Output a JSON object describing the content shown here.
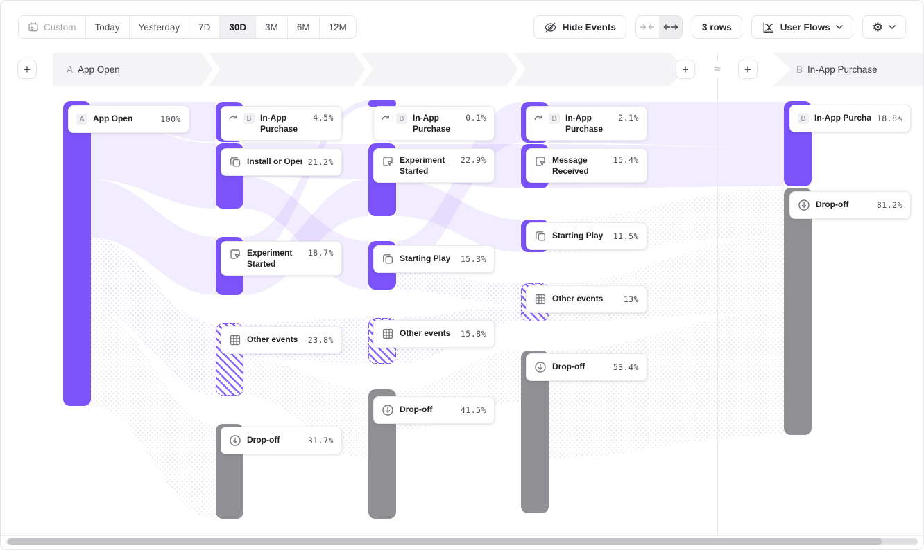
{
  "toolbar": {
    "date_ranges": [
      {
        "label": "Custom",
        "icon": "calendar-icon",
        "muted": true
      },
      {
        "label": "Today"
      },
      {
        "label": "Yesterday"
      },
      {
        "label": "7D"
      },
      {
        "label": "30D",
        "active": true
      },
      {
        "label": "3M"
      },
      {
        "label": "6M"
      },
      {
        "label": "12M"
      }
    ],
    "hide_events_label": "Hide Events",
    "rows_label": "3 rows",
    "view_label": "User Flows",
    "icons": [
      "eye-off-icon",
      "arrows-inward-icon",
      "arrows-outward-icon",
      "flow-chart-icon",
      "gear-icon",
      "chevron-down-icon"
    ]
  },
  "steps": {
    "add_label": "+",
    "approx_symbol": "≈",
    "start": {
      "badge": "A",
      "label": "App Open"
    },
    "end": {
      "badge": "B",
      "label": "In-App Purchase"
    }
  },
  "colors": {
    "accent_purple": "#7c52fa",
    "dropoff_gray": "#909094",
    "band_gray": "#f4f4f6",
    "flow_tint": "#7c52fa"
  },
  "chart_data": {
    "type": "sankey",
    "title": "User Flows from A App Open to B In-App Purchase",
    "unit": "percent of users",
    "columns": [
      {
        "nodes": [
          {
            "label": "App Open",
            "badge": "A",
            "value": "100%",
            "kind": "start"
          }
        ]
      },
      {
        "nodes": [
          {
            "label": "In-App Purchase",
            "badge": "B",
            "icon": "jump-icon",
            "value": "4.5%",
            "kind": "purchase"
          },
          {
            "label": "Install or Open",
            "icon": "copy-icon",
            "value": "21.2%",
            "kind": "event"
          },
          {
            "label": "Experiment Started",
            "icon": "click-icon",
            "value": "18.7%",
            "kind": "event"
          },
          {
            "label": "Other events",
            "icon": "grid-icon",
            "value": "23.8%",
            "kind": "other"
          },
          {
            "label": "Drop-off",
            "icon": "dropoff-icon",
            "value": "31.7%",
            "kind": "dropoff"
          }
        ]
      },
      {
        "nodes": [
          {
            "label": "In-App Purchase",
            "badge": "B",
            "icon": "jump-icon",
            "value": "0.1%",
            "kind": "purchase"
          },
          {
            "label": "Experiment Started",
            "icon": "click-icon",
            "value": "22.9%",
            "kind": "event"
          },
          {
            "label": "Starting Play",
            "icon": "copy-icon",
            "value": "15.3%",
            "kind": "event"
          },
          {
            "label": "Other events",
            "icon": "grid-icon",
            "value": "15.8%",
            "kind": "other"
          },
          {
            "label": "Drop-off",
            "icon": "dropoff-icon",
            "value": "41.5%",
            "kind": "dropoff"
          }
        ]
      },
      {
        "nodes": [
          {
            "label": "In-App Purchase",
            "badge": "B",
            "icon": "jump-icon",
            "value": "2.1%",
            "kind": "purchase"
          },
          {
            "label": "Message Received",
            "icon": "click-icon",
            "value": "15.4%",
            "kind": "event"
          },
          {
            "label": "Starting Play",
            "icon": "copy-icon",
            "value": "11.5%",
            "kind": "event"
          },
          {
            "label": "Other events",
            "icon": "grid-icon",
            "value": "13%",
            "kind": "other"
          },
          {
            "label": "Drop-off",
            "icon": "dropoff-icon",
            "value": "53.4%",
            "kind": "dropoff"
          }
        ]
      },
      {
        "nodes": [
          {
            "label": "In-App Purchase",
            "badge": "B",
            "value": "18.8%",
            "kind": "purchase-end"
          },
          {
            "label": "Drop-off",
            "icon": "dropoff-icon",
            "value": "81.2%",
            "kind": "dropoff"
          }
        ]
      }
    ]
  }
}
